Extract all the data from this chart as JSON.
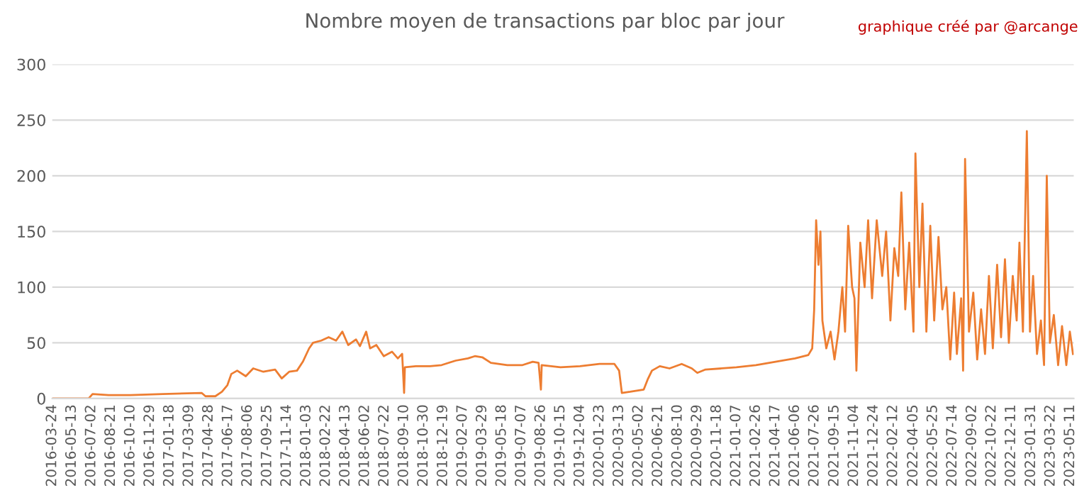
{
  "chart_data": {
    "type": "line",
    "title": "Nombre moyen de transactions par bloc par jour",
    "annotations": [
      "graphique créé par @arcange"
    ],
    "x": [
      "2016-03-24",
      "2016-06-25",
      "2016-07-05",
      "2016-08-15",
      "2016-10-10",
      "2017-01-01",
      "2017-04-10",
      "2017-04-20",
      "2017-05-15",
      "2017-06-01",
      "2017-06-15",
      "2017-06-25",
      "2017-07-10",
      "2017-08-01",
      "2017-08-20",
      "2017-09-15",
      "2017-10-15",
      "2017-11-01",
      "2017-11-20",
      "2017-12-10",
      "2017-12-25",
      "2018-01-10",
      "2018-01-20",
      "2018-02-10",
      "2018-03-01",
      "2018-03-20",
      "2018-04-05",
      "2018-04-20",
      "2018-05-10",
      "2018-05-20",
      "2018-06-05",
      "2018-06-15",
      "2018-07-01",
      "2018-07-20",
      "2018-08-10",
      "2018-08-25",
      "2018-09-05",
      "2018-09-10",
      "2018-09-12",
      "2018-10-10",
      "2018-11-15",
      "2018-12-15",
      "2019-01-20",
      "2019-02-20",
      "2019-03-10",
      "2019-03-29",
      "2019-04-20",
      "2019-06-01",
      "2019-07-10",
      "2019-08-05",
      "2019-08-20",
      "2019-08-26",
      "2019-08-28",
      "2019-10-15",
      "2019-12-04",
      "2020-01-23",
      "2020-03-01",
      "2020-03-13",
      "2020-03-20",
      "2020-04-10",
      "2020-05-15",
      "2020-05-25",
      "2020-06-05",
      "2020-06-25",
      "2020-07-20",
      "2020-08-20",
      "2020-09-15",
      "2020-09-29",
      "2020-10-20",
      "2020-12-01",
      "2021-01-07",
      "2021-02-26",
      "2021-04-17",
      "2021-06-06",
      "2021-07-10",
      "2021-07-20",
      "2021-07-25",
      "2021-07-30",
      "2021-08-05",
      "2021-08-10",
      "2021-08-15",
      "2021-08-25",
      "2021-09-05",
      "2021-09-15",
      "2021-09-25",
      "2021-10-05",
      "2021-10-12",
      "2021-10-20",
      "2021-10-30",
      "2021-11-05",
      "2021-11-10",
      "2021-11-20",
      "2021-12-01",
      "2021-12-10",
      "2021-12-20",
      "2022-01-01",
      "2022-01-15",
      "2022-01-25",
      "2022-02-05",
      "2022-02-15",
      "2022-02-25",
      "2022-03-05",
      "2022-03-15",
      "2022-03-25",
      "2022-04-05",
      "2022-04-10",
      "2022-04-20",
      "2022-04-28",
      "2022-05-08",
      "2022-05-18",
      "2022-05-28",
      "2022-06-08",
      "2022-06-18",
      "2022-06-28",
      "2022-07-08",
      "2022-07-18",
      "2022-07-25",
      "2022-08-05",
      "2022-08-10",
      "2022-08-15",
      "2022-08-25",
      "2022-09-05",
      "2022-09-15",
      "2022-09-25",
      "2022-10-05",
      "2022-10-15",
      "2022-10-25",
      "2022-11-05",
      "2022-11-15",
      "2022-11-25",
      "2022-12-05",
      "2022-12-15",
      "2022-12-25",
      "2023-01-01",
      "2023-01-10",
      "2023-01-20",
      "2023-01-28",
      "2023-02-05",
      "2023-02-15",
      "2023-02-25",
      "2023-03-05",
      "2023-03-12",
      "2023-03-20",
      "2023-03-30",
      "2023-04-10",
      "2023-04-20",
      "2023-05-01",
      "2023-05-10",
      "2023-05-18"
    ],
    "series": [
      {
        "color": "#ed7d31",
        "values": [
          0,
          0,
          4,
          3,
          3,
          4,
          5,
          2,
          2,
          6,
          12,
          22,
          25,
          20,
          27,
          24,
          26,
          18,
          24,
          25,
          33,
          45,
          50,
          52,
          55,
          52,
          60,
          48,
          53,
          47,
          60,
          45,
          48,
          38,
          42,
          36,
          40,
          5,
          28,
          29,
          29,
          30,
          34,
          36,
          38,
          37,
          32,
          30,
          30,
          33,
          32,
          8,
          30,
          28,
          29,
          31,
          31,
          25,
          5,
          6,
          8,
          17,
          25,
          29,
          27,
          31,
          27,
          23,
          26,
          27,
          28,
          30,
          33,
          36,
          39,
          45,
          80,
          160,
          120,
          150,
          70,
          45,
          60,
          35,
          60,
          100,
          60,
          155,
          100,
          90,
          25,
          140,
          100,
          160,
          90,
          160,
          110,
          150,
          70,
          135,
          110,
          185,
          80,
          140,
          60,
          220,
          100,
          175,
          60,
          155,
          70,
          145,
          80,
          100,
          35,
          95,
          40,
          90,
          25,
          215,
          60,
          95,
          35,
          80,
          40,
          110,
          45,
          120,
          55,
          125,
          50,
          110,
          70,
          140,
          60,
          240,
          60,
          110,
          40,
          70,
          30,
          200,
          50,
          75,
          30,
          65,
          30,
          60,
          40
        ]
      }
    ],
    "xlim": [
      "2016-03-24",
      "2023-05-20"
    ],
    "xticks": [
      "2016-03-24",
      "2016-05-13",
      "2016-07-02",
      "2016-08-21",
      "2016-10-10",
      "2016-11-29",
      "2017-01-18",
      "2017-03-09",
      "2017-04-28",
      "2017-06-17",
      "2017-08-06",
      "2017-09-25",
      "2017-11-14",
      "2018-01-03",
      "2018-02-22",
      "2018-04-13",
      "2018-06-02",
      "2018-07-22",
      "2018-09-10",
      "2018-10-30",
      "2018-12-19",
      "2019-02-07",
      "2019-03-29",
      "2019-05-18",
      "2019-07-07",
      "2019-08-26",
      "2019-10-15",
      "2019-12-04",
      "2020-01-23",
      "2020-03-13",
      "2020-05-02",
      "2020-06-21",
      "2020-08-10",
      "2020-09-29",
      "2020-11-18",
      "2021-01-07",
      "2021-02-26",
      "2021-04-17",
      "2021-06-06",
      "2021-07-26",
      "2021-09-15",
      "2021-11-04",
      "2021-12-24",
      "2022-02-12",
      "2022-04-05",
      "2022-05-25",
      "2022-07-14",
      "2022-09-02",
      "2022-10-22",
      "2022-12-11",
      "2023-01-31",
      "2023-03-22",
      "2023-05-11"
    ],
    "ylim": [
      0,
      300
    ],
    "yticks": [
      0,
      50,
      100,
      150,
      200,
      250,
      300
    ],
    "grid": "y",
    "marker": "none",
    "line_style": "solid"
  }
}
